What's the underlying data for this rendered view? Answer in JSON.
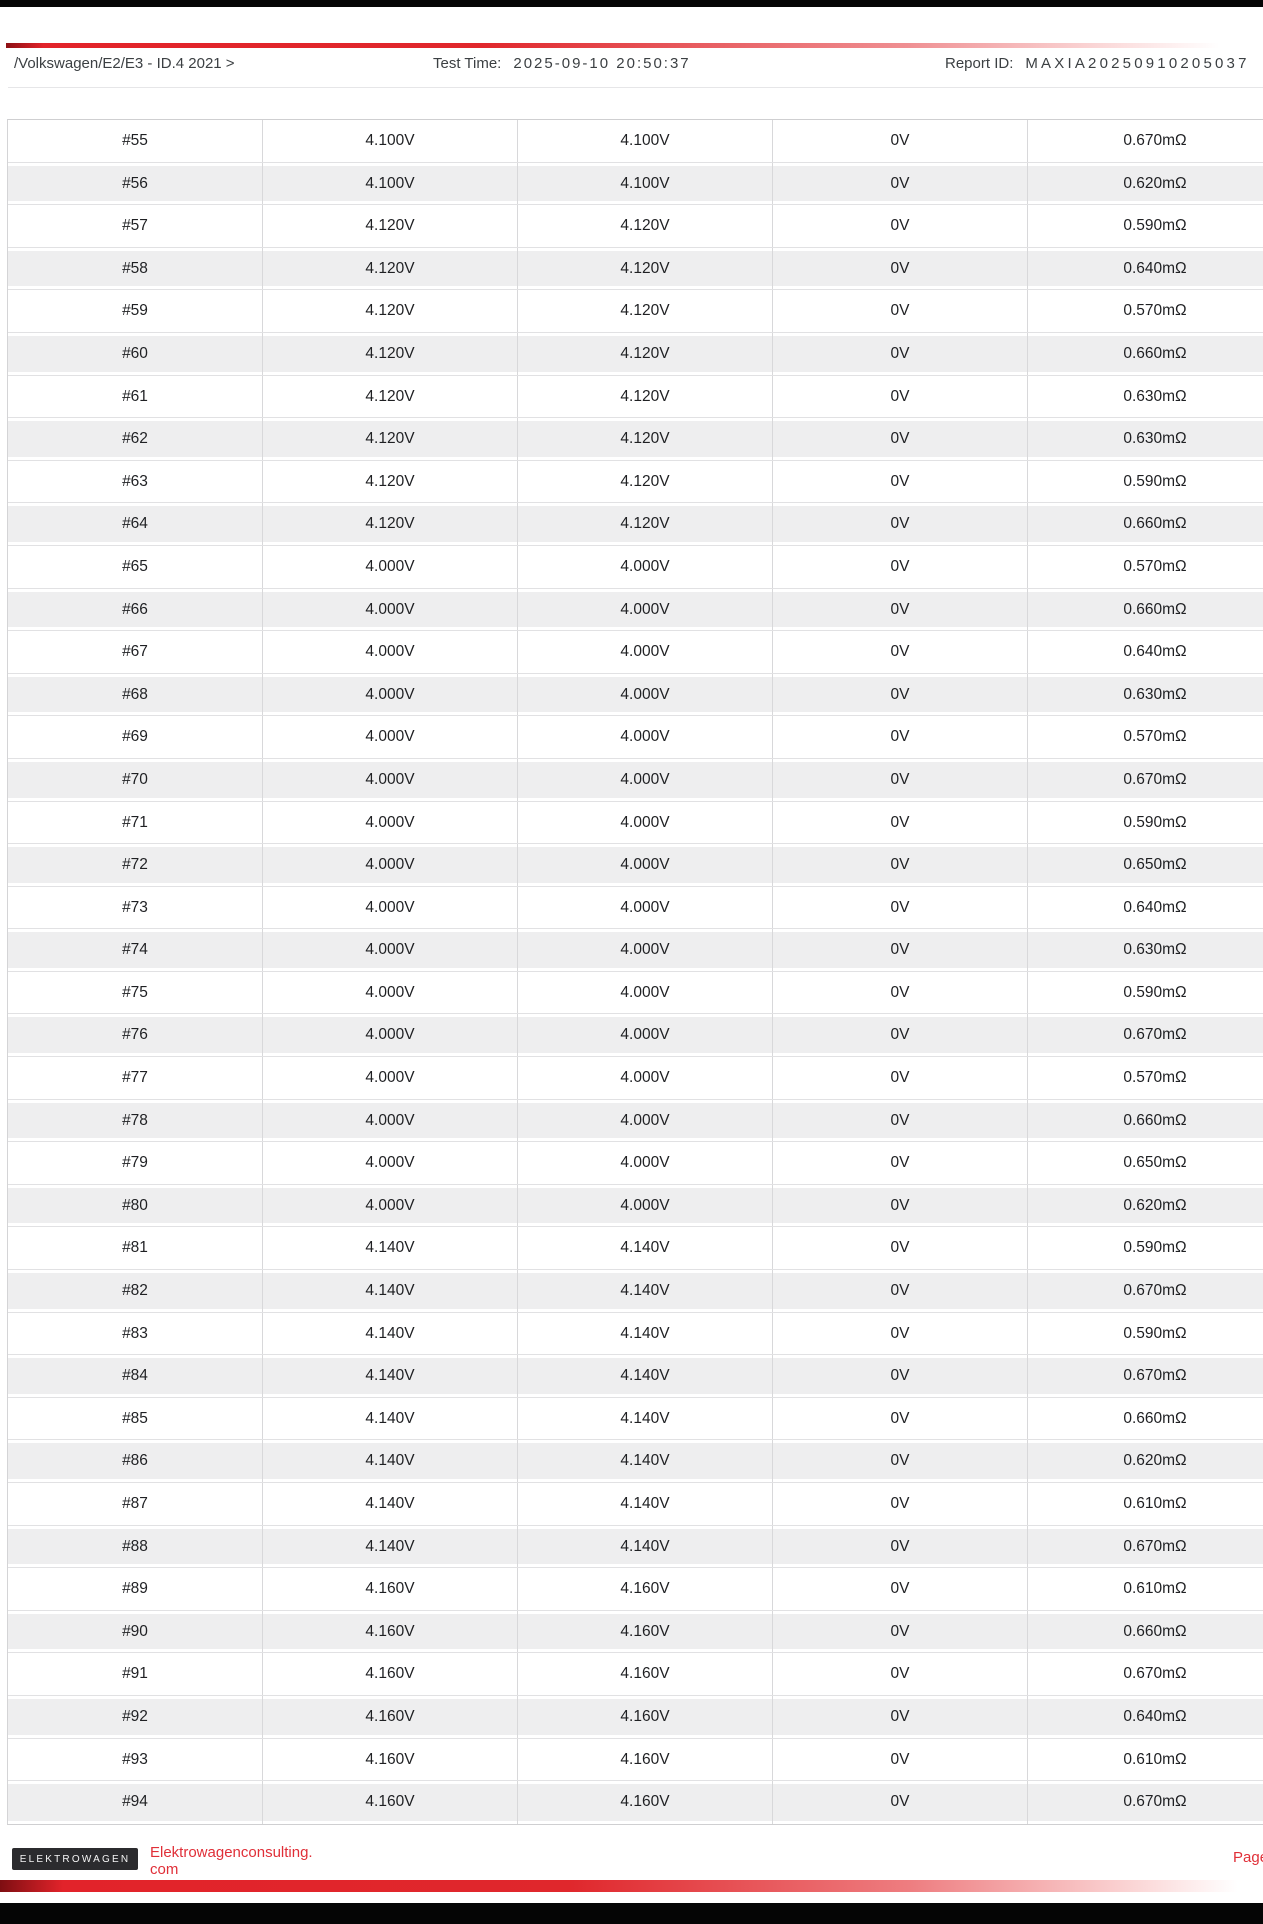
{
  "header": {
    "breadcrumb": "/Volkswagen/E2/E3 - ID.4 2021 >",
    "test_time_label": "Test Time:",
    "test_time_value": "2025-09-10 20:50:37",
    "report_id_label": "Report ID:",
    "report_id_value": "MAXIA20250910205037"
  },
  "table": {
    "columns": [
      "cell_id",
      "voltage_1",
      "voltage_2",
      "voltage_3",
      "resistance"
    ],
    "rows": [
      [
        "#55",
        "4.100V",
        "4.100V",
        "0V",
        "0.670mΩ"
      ],
      [
        "#56",
        "4.100V",
        "4.100V",
        "0V",
        "0.620mΩ"
      ],
      [
        "#57",
        "4.120V",
        "4.120V",
        "0V",
        "0.590mΩ"
      ],
      [
        "#58",
        "4.120V",
        "4.120V",
        "0V",
        "0.640mΩ"
      ],
      [
        "#59",
        "4.120V",
        "4.120V",
        "0V",
        "0.570mΩ"
      ],
      [
        "#60",
        "4.120V",
        "4.120V",
        "0V",
        "0.660mΩ"
      ],
      [
        "#61",
        "4.120V",
        "4.120V",
        "0V",
        "0.630mΩ"
      ],
      [
        "#62",
        "4.120V",
        "4.120V",
        "0V",
        "0.630mΩ"
      ],
      [
        "#63",
        "4.120V",
        "4.120V",
        "0V",
        "0.590mΩ"
      ],
      [
        "#64",
        "4.120V",
        "4.120V",
        "0V",
        "0.660mΩ"
      ],
      [
        "#65",
        "4.000V",
        "4.000V",
        "0V",
        "0.570mΩ"
      ],
      [
        "#66",
        "4.000V",
        "4.000V",
        "0V",
        "0.660mΩ"
      ],
      [
        "#67",
        "4.000V",
        "4.000V",
        "0V",
        "0.640mΩ"
      ],
      [
        "#68",
        "4.000V",
        "4.000V",
        "0V",
        "0.630mΩ"
      ],
      [
        "#69",
        "4.000V",
        "4.000V",
        "0V",
        "0.570mΩ"
      ],
      [
        "#70",
        "4.000V",
        "4.000V",
        "0V",
        "0.670mΩ"
      ],
      [
        "#71",
        "4.000V",
        "4.000V",
        "0V",
        "0.590mΩ"
      ],
      [
        "#72",
        "4.000V",
        "4.000V",
        "0V",
        "0.650mΩ"
      ],
      [
        "#73",
        "4.000V",
        "4.000V",
        "0V",
        "0.640mΩ"
      ],
      [
        "#74",
        "4.000V",
        "4.000V",
        "0V",
        "0.630mΩ"
      ],
      [
        "#75",
        "4.000V",
        "4.000V",
        "0V",
        "0.590mΩ"
      ],
      [
        "#76",
        "4.000V",
        "4.000V",
        "0V",
        "0.670mΩ"
      ],
      [
        "#77",
        "4.000V",
        "4.000V",
        "0V",
        "0.570mΩ"
      ],
      [
        "#78",
        "4.000V",
        "4.000V",
        "0V",
        "0.660mΩ"
      ],
      [
        "#79",
        "4.000V",
        "4.000V",
        "0V",
        "0.650mΩ"
      ],
      [
        "#80",
        "4.000V",
        "4.000V",
        "0V",
        "0.620mΩ"
      ],
      [
        "#81",
        "4.140V",
        "4.140V",
        "0V",
        "0.590mΩ"
      ],
      [
        "#82",
        "4.140V",
        "4.140V",
        "0V",
        "0.670mΩ"
      ],
      [
        "#83",
        "4.140V",
        "4.140V",
        "0V",
        "0.590mΩ"
      ],
      [
        "#84",
        "4.140V",
        "4.140V",
        "0V",
        "0.670mΩ"
      ],
      [
        "#85",
        "4.140V",
        "4.140V",
        "0V",
        "0.660mΩ"
      ],
      [
        "#86",
        "4.140V",
        "4.140V",
        "0V",
        "0.620mΩ"
      ],
      [
        "#87",
        "4.140V",
        "4.140V",
        "0V",
        "0.610mΩ"
      ],
      [
        "#88",
        "4.140V",
        "4.140V",
        "0V",
        "0.670mΩ"
      ],
      [
        "#89",
        "4.160V",
        "4.160V",
        "0V",
        "0.610mΩ"
      ],
      [
        "#90",
        "4.160V",
        "4.160V",
        "0V",
        "0.660mΩ"
      ],
      [
        "#91",
        "4.160V",
        "4.160V",
        "0V",
        "0.670mΩ"
      ],
      [
        "#92",
        "4.160V",
        "4.160V",
        "0V",
        "0.640mΩ"
      ],
      [
        "#93",
        "4.160V",
        "4.160V",
        "0V",
        "0.610mΩ"
      ],
      [
        "#94",
        "4.160V",
        "4.160V",
        "0V",
        "0.670mΩ"
      ]
    ]
  },
  "footer": {
    "brand": "ELEKTROWAGEN",
    "website": "Elektrowagenconsulting.com",
    "page_label": "Page"
  },
  "colors": {
    "accent_red": "#e2232a",
    "link_red": "#e02f38",
    "bar_black": "#050505",
    "stripe_gray": "#eeeeef",
    "logo_bg": "#2b2b2e"
  }
}
